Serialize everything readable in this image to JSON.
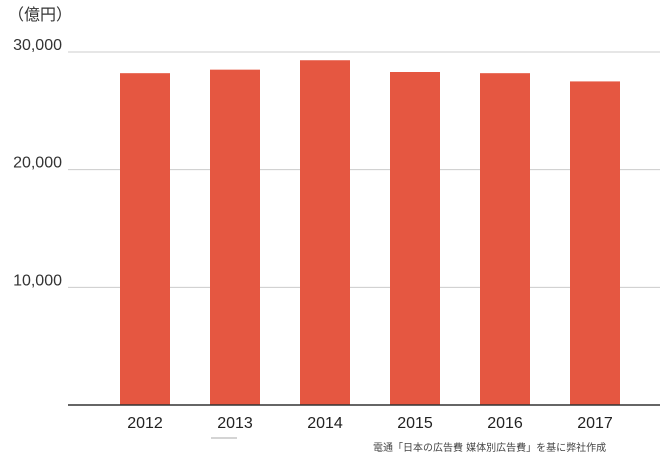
{
  "chart_data": {
    "type": "bar",
    "categories": [
      "2012",
      "2013",
      "2014",
      "2015",
      "2016",
      "2017"
    ],
    "values": [
      28200,
      28500,
      29300,
      28300,
      28200,
      27500
    ],
    "title": "",
    "xlabel": "",
    "ylabel": "",
    "unit_label": "（億円）",
    "ylim": [
      0,
      30000
    ],
    "yticks": [
      10000,
      20000,
      30000
    ],
    "ytick_labels": [
      "10,000",
      "20,000",
      "30,000"
    ],
    "grid": true,
    "bar_color": "#e55741",
    "grid_color": "#cccccc",
    "source_note": "電通「日本の広告費 媒体別広告費」を基に弊社作成"
  }
}
